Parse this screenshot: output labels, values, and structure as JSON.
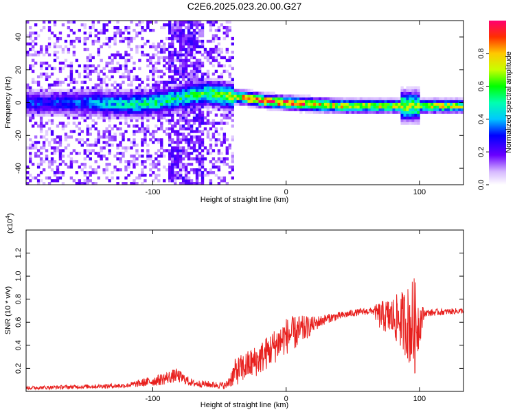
{
  "title": "C2E6.2025.023.20.00.G27",
  "chart_data": [
    {
      "type": "heatmap",
      "xlabel": "Height of straight line (km)",
      "ylabel": "Frequency (Hz)",
      "xlim": [
        -195,
        133
      ],
      "ylim": [
        -50,
        50
      ],
      "xticks": [
        -100,
        0,
        100
      ],
      "yticks": [
        -40,
        -20,
        0,
        20,
        40
      ],
      "colorbar": {
        "label": "Normalized spectral amplitude",
        "range": [
          0,
          1
        ],
        "ticks": [
          0.0,
          0.2,
          0.4,
          0.6,
          0.8
        ]
      },
      "ridge": [
        {
          "x": -160,
          "f": 0,
          "amp": 0.3
        },
        {
          "x": -140,
          "f": 0,
          "amp": 0.4
        },
        {
          "x": -120,
          "f": -1,
          "amp": 0.45
        },
        {
          "x": -100,
          "f": 0,
          "amp": 0.5
        },
        {
          "x": -86,
          "f": 2,
          "amp": 0.5
        },
        {
          "x": -60,
          "f": 6,
          "amp": 0.55
        },
        {
          "x": -45,
          "f": 4,
          "amp": 0.65
        },
        {
          "x": -30,
          "f": 3,
          "amp": 0.85
        },
        {
          "x": -15,
          "f": 1,
          "amp": 0.9
        },
        {
          "x": 0,
          "f": 0,
          "amp": 0.85
        },
        {
          "x": 20,
          "f": -1,
          "amp": 0.8
        },
        {
          "x": 40,
          "f": -2,
          "amp": 0.75
        },
        {
          "x": 60,
          "f": -2,
          "amp": 0.7
        },
        {
          "x": 80,
          "f": -2,
          "amp": 0.7
        },
        {
          "x": 95,
          "f": -2,
          "amp": 0.6
        },
        {
          "x": 110,
          "f": -2,
          "amp": 0.75
        },
        {
          "x": 133,
          "f": -2,
          "amp": 0.7
        }
      ]
    },
    {
      "type": "line",
      "xlabel": "Height of straight line (km)",
      "ylabel": "SNR (10 * v/v)",
      "exponent_label": "(x10",
      "exponent_power": "4",
      "exponent_close": ")",
      "xlim": [
        -195,
        133
      ],
      "ylim": [
        0,
        1.4
      ],
      "xticks": [
        -100,
        0,
        100
      ],
      "yticks": [
        0.2,
        0.4,
        0.6,
        0.8,
        1.0,
        1.2
      ],
      "color": "#e8201e",
      "envelope": [
        {
          "x": -195,
          "y": 0.03,
          "noise": 0.015
        },
        {
          "x": -120,
          "y": 0.05,
          "noise": 0.02
        },
        {
          "x": -95,
          "y": 0.1,
          "noise": 0.05
        },
        {
          "x": -82,
          "y": 0.14,
          "noise": 0.06
        },
        {
          "x": -70,
          "y": 0.07,
          "noise": 0.03
        },
        {
          "x": -45,
          "y": 0.05,
          "noise": 0.03
        },
        {
          "x": -38,
          "y": 0.17,
          "noise": 0.12
        },
        {
          "x": -20,
          "y": 0.28,
          "noise": 0.14
        },
        {
          "x": 0,
          "y": 0.48,
          "noise": 0.16
        },
        {
          "x": 10,
          "y": 0.52,
          "noise": 0.14
        },
        {
          "x": 20,
          "y": 0.58,
          "noise": 0.07
        },
        {
          "x": 30,
          "y": 0.63,
          "noise": 0.04
        },
        {
          "x": 50,
          "y": 0.68,
          "noise": 0.03
        },
        {
          "x": 65,
          "y": 0.7,
          "noise": 0.03
        },
        {
          "x": 70,
          "y": 0.66,
          "noise": 0.12
        },
        {
          "x": 80,
          "y": 0.64,
          "noise": 0.18
        },
        {
          "x": 90,
          "y": 0.6,
          "noise": 0.3
        },
        {
          "x": 96,
          "y": 0.55,
          "noise": 0.45
        },
        {
          "x": 100,
          "y": 0.6,
          "noise": 0.2
        },
        {
          "x": 104,
          "y": 0.68,
          "noise": 0.03
        },
        {
          "x": 133,
          "y": 0.7,
          "noise": 0.025
        }
      ]
    }
  ]
}
